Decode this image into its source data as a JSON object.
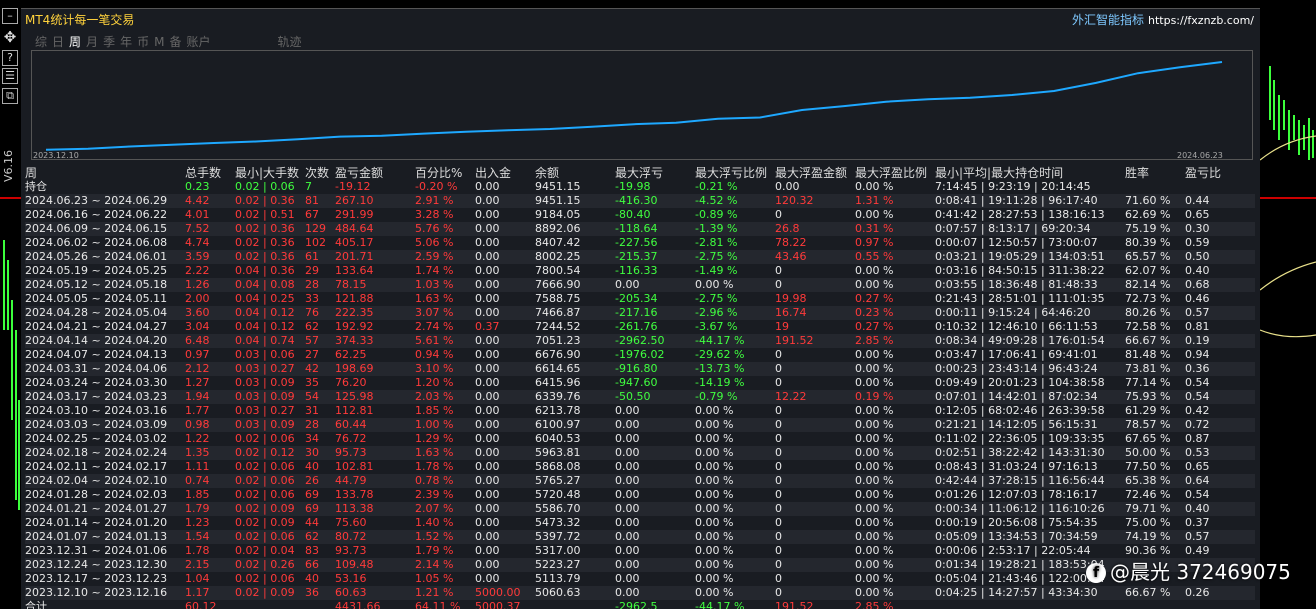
{
  "app": {
    "title": "MT4统计每一笔交易",
    "brand_cn": "外汇智能指标",
    "brand_url": "https://fxznzb.com/"
  },
  "toolbar": {
    "icons": [
      "minimize-icon",
      "move-icon",
      "help-icon",
      "table-icon",
      "restore-icon"
    ],
    "version": "V6.16"
  },
  "tabs": [
    {
      "label": "综",
      "active": false
    },
    {
      "label": "日",
      "active": false
    },
    {
      "label": "周",
      "active": true
    },
    {
      "label": "月",
      "active": false
    },
    {
      "label": "季",
      "active": false
    },
    {
      "label": "年",
      "active": false
    },
    {
      "label": "币",
      "active": false
    },
    {
      "label": "M",
      "active": false
    },
    {
      "label": "备",
      "active": false
    },
    {
      "label": "账户",
      "active": false
    },
    {
      "label": "轨迹",
      "active": false
    }
  ],
  "equity_chart": {
    "start_date": "2023.12.10",
    "end_date": "2024.06.23",
    "line_color": "#1ea8ff",
    "balance_series": [
      5060.63,
      5113.79,
      5223.27,
      5317.0,
      5397.72,
      5473.32,
      5586.7,
      5720.48,
      5765.27,
      5868.08,
      5963.81,
      6040.53,
      6100.97,
      6213.78,
      6339.76,
      6415.96,
      6614.65,
      6676.9,
      7051.23,
      7244.52,
      7466.87,
      7588.75,
      7666.9,
      7800.54,
      8002.25,
      8407.42,
      8892.06,
      9184.05,
      9451.15
    ]
  },
  "table": {
    "headers": [
      "周",
      "总手数",
      "最小|大手数",
      "次数",
      "盈亏金额",
      "百分比%",
      "出入金",
      "余额",
      "最大浮亏",
      "最大浮亏比例",
      "最大浮盈金额",
      "最大浮盈比例",
      "最小|平均|最大持仓时间",
      "胜率",
      "盈亏比"
    ],
    "position_row": [
      "持仓",
      "0.23",
      "0.02 | 0.06",
      "7",
      "-19.12",
      "-0.20 %",
      "0.00",
      "9451.15",
      "-19.98",
      "-0.21 %",
      "0.00",
      "0.00 %",
      "7:14:45 | 9:23:19 | 20:14:45",
      "",
      ""
    ],
    "rows": [
      [
        "2024.06.23 ~ 2024.06.29",
        "4.42",
        "0.02 | 0.36",
        "81",
        "267.10",
        "2.91 %",
        "0.00",
        "9451.15",
        "-416.30",
        "-4.52 %",
        "120.32",
        "1.31 %",
        "0:08:41 | 19:11:28 | 96:17:40",
        "71.60 %",
        "0.44"
      ],
      [
        "2024.06.16 ~ 2024.06.22",
        "4.01",
        "0.02 | 0.51",
        "67",
        "291.99",
        "3.28 %",
        "0.00",
        "9184.05",
        "-80.40",
        "-0.89 %",
        "0",
        "0.00 %",
        "0:41:42 | 28:27:53 | 138:16:13",
        "62.69 %",
        "0.65"
      ],
      [
        "2024.06.09 ~ 2024.06.15",
        "7.52",
        "0.02 | 0.36",
        "129",
        "484.64",
        "5.76 %",
        "0.00",
        "8892.06",
        "-118.64",
        "-1.39 %",
        "26.8",
        "0.31 %",
        "0:07:57 | 8:13:17 | 69:20:34",
        "75.19 %",
        "0.30"
      ],
      [
        "2024.06.02 ~ 2024.06.08",
        "4.74",
        "0.02 | 0.36",
        "102",
        "405.17",
        "5.06 %",
        "0.00",
        "8407.42",
        "-227.56",
        "-2.81 %",
        "78.22",
        "0.97 %",
        "0:00:07 | 12:50:57 | 73:00:07",
        "80.39 %",
        "0.59"
      ],
      [
        "2024.05.26 ~ 2024.06.01",
        "3.59",
        "0.02 | 0.36",
        "61",
        "201.71",
        "2.59 %",
        "0.00",
        "8002.25",
        "-215.37",
        "-2.75 %",
        "43.46",
        "0.55 %",
        "0:03:21 | 19:05:29 | 134:03:51",
        "65.57 %",
        "0.50"
      ],
      [
        "2024.05.19 ~ 2024.05.25",
        "2.22",
        "0.04 | 0.36",
        "29",
        "133.64",
        "1.74 %",
        "0.00",
        "7800.54",
        "-116.33",
        "-1.49 %",
        "0",
        "0.00 %",
        "0:03:16 | 84:50:15 | 311:38:22",
        "62.07 %",
        "0.40"
      ],
      [
        "2024.05.12 ~ 2024.05.18",
        "1.26",
        "0.04 | 0.08",
        "28",
        "78.15",
        "1.03 %",
        "0.00",
        "7666.90",
        "0.00",
        "0.00 %",
        "0",
        "0.00 %",
        "0:03:55 | 18:36:48 | 81:48:33",
        "82.14 %",
        "0.68"
      ],
      [
        "2024.05.05 ~ 2024.05.11",
        "2.00",
        "0.04 | 0.25",
        "33",
        "121.88",
        "1.63 %",
        "0.00",
        "7588.75",
        "-205.34",
        "-2.75 %",
        "19.98",
        "0.27 %",
        "0:21:43 | 28:51:01 | 111:01:35",
        "72.73 %",
        "0.46"
      ],
      [
        "2024.04.28 ~ 2024.05.04",
        "3.60",
        "0.04 | 0.12",
        "76",
        "222.35",
        "3.07 %",
        "0.00",
        "7466.87",
        "-217.16",
        "-2.96 %",
        "16.74",
        "0.23 %",
        "0:00:11 | 9:15:24 | 64:46:20",
        "80.26 %",
        "0.57"
      ],
      [
        "2024.04.21 ~ 2024.04.27",
        "3.04",
        "0.04 | 0.12",
        "62",
        "192.92",
        "2.74 %",
        "0.37",
        "7244.52",
        "-261.76",
        "-3.67 %",
        "19",
        "0.27 %",
        "0:10:32 | 12:46:10 | 66:11:53",
        "72.58 %",
        "0.81"
      ],
      [
        "2024.04.14 ~ 2024.04.20",
        "6.48",
        "0.04 | 0.74",
        "57",
        "374.33",
        "5.61 %",
        "0.00",
        "7051.23",
        "-2962.50",
        "-44.17 %",
        "191.52",
        "2.85 %",
        "0:08:34 | 49:09:28 | 176:01:54",
        "66.67 %",
        "0.19"
      ],
      [
        "2024.04.07 ~ 2024.04.13",
        "0.97",
        "0.03 | 0.06",
        "27",
        "62.25",
        "0.94 %",
        "0.00",
        "6676.90",
        "-1976.02",
        "-29.62 %",
        "0",
        "0.00 %",
        "0:03:47 | 17:06:41 | 69:41:01",
        "81.48 %",
        "0.94"
      ],
      [
        "2024.03.31 ~ 2024.04.06",
        "2.12",
        "0.03 | 0.27",
        "42",
        "198.69",
        "3.10 %",
        "0.00",
        "6614.65",
        "-916.80",
        "-13.73 %",
        "0",
        "0.00 %",
        "0:00:23 | 23:43:14 | 96:43:24",
        "73.81 %",
        "0.36"
      ],
      [
        "2024.03.24 ~ 2024.03.30",
        "1.27",
        "0.03 | 0.09",
        "35",
        "76.20",
        "1.20 %",
        "0.00",
        "6415.96",
        "-947.60",
        "-14.19 %",
        "0",
        "0.00 %",
        "0:09:49 | 20:01:23 | 104:38:58",
        "77.14 %",
        "0.54"
      ],
      [
        "2024.03.17 ~ 2024.03.23",
        "1.94",
        "0.03 | 0.09",
        "54",
        "125.98",
        "2.03 %",
        "0.00",
        "6339.76",
        "-50.50",
        "-0.79 %",
        "12.22",
        "0.19 %",
        "0:07:01 | 14:42:01 | 87:02:34",
        "75.93 %",
        "0.54"
      ],
      [
        "2024.03.10 ~ 2024.03.16",
        "1.77",
        "0.03 | 0.27",
        "31",
        "112.81",
        "1.85 %",
        "0.00",
        "6213.78",
        "0.00",
        "0.00 %",
        "0",
        "0.00 %",
        "0:12:05 | 68:02:46 | 263:39:58",
        "61.29 %",
        "0.42"
      ],
      [
        "2024.03.03 ~ 2024.03.09",
        "0.98",
        "0.03 | 0.09",
        "28",
        "60.44",
        "1.00 %",
        "0.00",
        "6100.97",
        "0.00",
        "0.00 %",
        "0",
        "0.00 %",
        "0:21:21 | 14:12:05 | 56:15:31",
        "78.57 %",
        "0.72"
      ],
      [
        "2024.02.25 ~ 2024.03.02",
        "1.22",
        "0.02 | 0.06",
        "34",
        "76.72",
        "1.29 %",
        "0.00",
        "6040.53",
        "0.00",
        "0.00 %",
        "0",
        "0.00 %",
        "0:11:02 | 22:36:05 | 109:33:35",
        "67.65 %",
        "0.87"
      ],
      [
        "2024.02.18 ~ 2024.02.24",
        "1.35",
        "0.02 | 0.12",
        "30",
        "95.73",
        "1.63 %",
        "0.00",
        "5963.81",
        "0.00",
        "0.00 %",
        "0",
        "0.00 %",
        "0:02:51 | 38:22:42 | 143:31:30",
        "50.00 %",
        "0.53"
      ],
      [
        "2024.02.11 ~ 2024.02.17",
        "1.11",
        "0.02 | 0.06",
        "40",
        "102.81",
        "1.78 %",
        "0.00",
        "5868.08",
        "0.00",
        "0.00 %",
        "0",
        "0.00 %",
        "0:08:43 | 31:03:24 | 97:16:13",
        "77.50 %",
        "0.65"
      ],
      [
        "2024.02.04 ~ 2024.02.10",
        "0.74",
        "0.02 | 0.06",
        "26",
        "44.79",
        "0.78 %",
        "0.00",
        "5765.27",
        "0.00",
        "0.00 %",
        "0",
        "0.00 %",
        "0:42:44 | 37:28:15 | 116:56:44",
        "65.38 %",
        "0.64"
      ],
      [
        "2024.01.28 ~ 2024.02.03",
        "1.85",
        "0.02 | 0.06",
        "69",
        "133.78",
        "2.39 %",
        "0.00",
        "5720.48",
        "0.00",
        "0.00 %",
        "0",
        "0.00 %",
        "0:01:26 | 12:07:03 | 78:16:17",
        "72.46 %",
        "0.54"
      ],
      [
        "2024.01.21 ~ 2024.01.27",
        "1.79",
        "0.02 | 0.09",
        "69",
        "113.38",
        "2.07 %",
        "0.00",
        "5586.70",
        "0.00",
        "0.00 %",
        "0",
        "0.00 %",
        "0:00:34 | 11:06:12 | 116:10:26",
        "79.71 %",
        "0.40"
      ],
      [
        "2024.01.14 ~ 2024.01.20",
        "1.23",
        "0.02 | 0.09",
        "44",
        "75.60",
        "1.40 %",
        "0.00",
        "5473.32",
        "0.00",
        "0.00 %",
        "0",
        "0.00 %",
        "0:00:19 | 20:56:08 | 75:54:35",
        "75.00 %",
        "0.37"
      ],
      [
        "2024.01.07 ~ 2024.01.13",
        "1.54",
        "0.02 | 0.06",
        "62",
        "80.72",
        "1.52 %",
        "0.00",
        "5397.72",
        "0.00",
        "0.00 %",
        "0",
        "0.00 %",
        "0:05:09 | 13:34:53 | 70:34:59",
        "74.19 %",
        "0.57"
      ],
      [
        "2023.12.31 ~ 2024.01.06",
        "1.78",
        "0.02 | 0.04",
        "83",
        "93.73",
        "1.79 %",
        "0.00",
        "5317.00",
        "0.00",
        "0.00 %",
        "0",
        "0.00 %",
        "0:00:06 | 2:53:17 | 22:05:44",
        "90.36 %",
        "0.49"
      ],
      [
        "2023.12.24 ~ 2023.12.30",
        "2.15",
        "0.02 | 0.26",
        "66",
        "109.48",
        "2.14 %",
        "0.00",
        "5223.27",
        "0.00",
        "0.00 %",
        "0",
        "0.00 %",
        "0:01:34 | 19:28:21 | 183:53:04",
        "",
        ""
      ],
      [
        "2023.12.17 ~ 2023.12.23",
        "1.04",
        "0.02 | 0.06",
        "40",
        "53.16",
        "1.05 %",
        "0.00",
        "5113.79",
        "0.00",
        "0.00 %",
        "0",
        "0.00 %",
        "0:05:04 | 21:43:46 | 122:00:24",
        "",
        ""
      ],
      [
        "2023.12.10 ~ 2023.12.16",
        "1.17",
        "0.02 | 0.09",
        "36",
        "60.63",
        "1.21 %",
        "5000.00",
        "5060.63",
        "0.00",
        "0.00 %",
        "0",
        "0.00 %",
        "0:04:25 | 14:27:57 | 43:34:30",
        "66.67 %",
        "0.26"
      ]
    ],
    "total_row": [
      "合计",
      "60.12",
      "",
      "",
      "4431.66",
      "64.11 %",
      "5000.37",
      "",
      "-2962.5",
      "-44.17 %",
      "191.52",
      "2.85 %",
      "",
      "",
      ""
    ]
  },
  "watermark": {
    "text": "@晨光 372469075"
  }
}
